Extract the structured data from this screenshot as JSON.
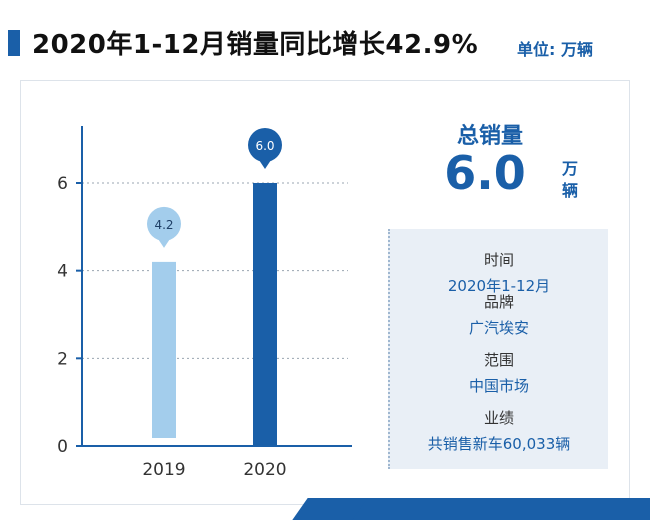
{
  "header": {
    "title": "2020年1-12月销量同比增长42.9%",
    "unit": "单位: 万辆"
  },
  "summary": {
    "label": "总销量",
    "value": "6.0",
    "unit": "万辆"
  },
  "info": [
    {
      "label": "时间",
      "value": "2020年1-12月"
    },
    {
      "label": "品牌",
      "value": "广汽埃安"
    },
    {
      "label": "范围",
      "value": "中国市场"
    },
    {
      "label": "业绩",
      "value": "共销售新车60,033辆"
    }
  ],
  "colors": {
    "accent": "#1a5fa8",
    "bar_2019": "#a3cdec",
    "bar_2020": "#1a5fa8",
    "info_bg": "#e9eff6"
  },
  "chart_data": {
    "type": "bar",
    "categories": [
      "2019",
      "2020"
    ],
    "values": [
      4.2,
      6.0
    ],
    "data_labels": [
      "4.2",
      "6.0"
    ],
    "yticks": [
      "0",
      "2",
      "4",
      "6"
    ],
    "ylim": [
      0,
      7.3
    ],
    "grid": true,
    "title": "",
    "xlabel": "",
    "ylabel": ""
  }
}
